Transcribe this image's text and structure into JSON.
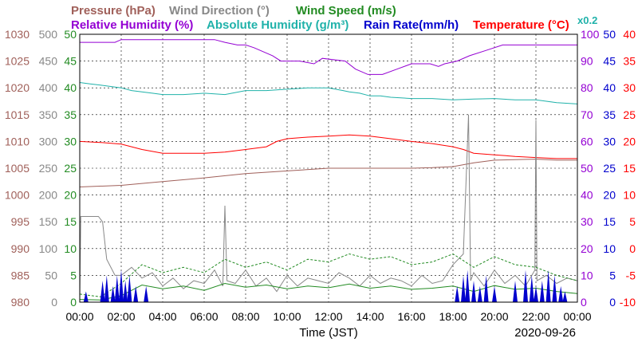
{
  "chart_data": {
    "type": "line",
    "xlabel": "Time (JST)",
    "date": "2020-09-26",
    "x_ticks": [
      "00:00",
      "02:00",
      "04:00",
      "06:00",
      "08:00",
      "10:00",
      "12:00",
      "14:00",
      "16:00",
      "18:00",
      "20:00",
      "22:00",
      "00:00"
    ],
    "xlim_hours": [
      0,
      24
    ],
    "grid": true,
    "legend": [
      {
        "text": "Pressure (hPa)",
        "color": "#a0605a"
      },
      {
        "text": "Wind Direction (°)",
        "color": "#888888"
      },
      {
        "text": "Wind Speed (m/s)",
        "color": "#228b22"
      },
      {
        "text": "Relative Humidity (%)",
        "color": "#9400d3"
      },
      {
        "text": "Absolute Humidity (g/m³)",
        "color": "#20b2aa"
      },
      {
        "text": "Rain Rate(mm/h)",
        "color": "#0000cd"
      },
      {
        "text": "Temperature (°C)",
        "color": "#ff0000"
      },
      {
        "text": "x0.2",
        "color": "#20b2aa"
      }
    ],
    "axes": {
      "pressure": {
        "color": "#a0605a",
        "ticks": [
          "980",
          "985",
          "990",
          "995",
          "1000",
          "1005",
          "1010",
          "1015",
          "1020",
          "1025",
          "1030"
        ]
      },
      "wind_direction": {
        "color": "#888888",
        "ticks": [
          "0",
          "50",
          "100",
          "150",
          "200",
          "250",
          "300",
          "350",
          "400",
          "450",
          "500"
        ]
      },
      "wind_speed": {
        "color": "#228b22",
        "ticks": [
          "0",
          "5",
          "10",
          "15",
          "20",
          "25",
          "30",
          "35",
          "40",
          "45",
          "50"
        ]
      },
      "humidity": {
        "color": "#9400d3",
        "ticks": [
          "0",
          "10",
          "20",
          "30",
          "40",
          "50",
          "60",
          "70",
          "80",
          "90",
          "100"
        ]
      },
      "rain_rate": {
        "color": "#0000cd",
        "ticks": [
          "0",
          "5",
          "10",
          "15",
          "20",
          "25",
          "30",
          "35",
          "40",
          "45",
          "50"
        ]
      },
      "temperature": {
        "color": "#ff0000",
        "ticks": [
          "-10",
          "-5",
          "0",
          "5",
          "10",
          "15",
          "20",
          "25",
          "30",
          "35",
          "40"
        ]
      }
    },
    "series": [
      {
        "name": "Relative Humidity (%)",
        "color": "#9400d3",
        "axis": "humidity",
        "x": [
          0,
          1.7,
          2.0,
          4.0,
          6.5,
          7.0,
          7.6,
          8.0,
          8.4,
          9.3,
          9.7,
          10.6,
          11.3,
          11.7,
          12.8,
          13.3,
          13.9,
          14.6,
          15.3,
          16.0,
          16.9,
          17.3,
          17.6,
          18.2,
          18.8,
          19.6,
          20.4,
          22.0,
          24.0
        ],
        "y": [
          97,
          97,
          98,
          98,
          98,
          97,
          96,
          96,
          95,
          92,
          90,
          90,
          89,
          91,
          90,
          87,
          85,
          85,
          87,
          89,
          89,
          88,
          89,
          90,
          92,
          94,
          96,
          96,
          96
        ]
      },
      {
        "name": "Absolute Humidity (g/m³)",
        "color": "#20b2aa",
        "axis": "humidity",
        "x": [
          0,
          0.5,
          1.0,
          1.5,
          2.0,
          2.5,
          3.0,
          3.5,
          4.0,
          5.0,
          6.0,
          7.0,
          8.0,
          9.0,
          10.0,
          11.0,
          12.0,
          12.7,
          13.0,
          13.5,
          14.0,
          14.5,
          15.0,
          16.0,
          17.0,
          18.0,
          19.0,
          20.0,
          21.0,
          22.0,
          23.0,
          24.0
        ],
        "y": [
          82,
          81.5,
          81,
          80.5,
          80,
          79,
          78.5,
          78,
          77.5,
          77.5,
          78,
          77.5,
          79,
          79,
          79.5,
          80,
          80,
          79,
          78.5,
          78,
          77,
          77,
          76.5,
          76,
          76,
          75.5,
          75.8,
          76,
          75.5,
          75.5,
          74.5,
          74
        ]
      },
      {
        "name": "Temperature (°C)",
        "color": "#ff0000",
        "axis": "temperature",
        "x": [
          0,
          1.0,
          2.0,
          3.0,
          4.0,
          5.0,
          6.0,
          7.0,
          8.0,
          9.0,
          9.5,
          10.0,
          11.0,
          12.0,
          13.0,
          14.0,
          15.0,
          16.0,
          17.0,
          18.0,
          18.5,
          19.0,
          20.0,
          21.0,
          22.0,
          23.0,
          24.0
        ],
        "y": [
          20,
          19.8,
          19.5,
          18.5,
          17.8,
          17.8,
          17.8,
          18.0,
          18.5,
          19.0,
          20.0,
          20.5,
          20.8,
          21.0,
          21.2,
          21.0,
          20.5,
          20.0,
          19.6,
          19.0,
          18.5,
          17.8,
          17.5,
          17.2,
          17.0,
          16.8,
          16.8
        ]
      },
      {
        "name": "Pressure (hPa)",
        "color": "#a0605a",
        "axis": "pressure",
        "x": [
          0,
          2.0,
          4.0,
          6.0,
          8.0,
          10.0,
          12.0,
          14.0,
          16.0,
          17.0,
          18.0,
          19.0,
          20.0,
          21.0,
          22.0,
          23.0,
          24.0
        ],
        "y": [
          1001.5,
          1001.8,
          1002.5,
          1003.2,
          1004.0,
          1004.5,
          1005.0,
          1005.0,
          1005.0,
          1005.1,
          1005.3,
          1006.0,
          1006.5,
          1006.6,
          1006.7,
          1006.5,
          1006.5
        ]
      },
      {
        "name": "Wind Direction (°)",
        "color": "#888888",
        "axis": "wind_direction",
        "x": [
          0,
          0.05,
          0.9,
          1.1,
          1.3,
          1.7,
          2.0,
          2.5,
          3.0,
          3.5,
          4.0,
          4.5,
          5.0,
          5.5,
          6.0,
          6.5,
          6.9,
          7.0,
          7.1,
          7.5,
          8.0,
          8.5,
          9.0,
          9.5,
          10.0,
          10.5,
          11.0,
          11.5,
          12.0,
          12.5,
          13.0,
          13.5,
          14.0,
          14.5,
          15.0,
          15.5,
          16.0,
          16.5,
          17.0,
          17.5,
          18.0,
          18.5,
          18.75,
          18.85,
          19.0,
          19.5,
          20.0,
          20.5,
          21.0,
          21.5,
          21.95,
          22.0,
          22.05,
          22.5,
          23.0,
          23.5,
          24.0
        ],
        "y": [
          0,
          160,
          160,
          150,
          80,
          50,
          50,
          65,
          45,
          55,
          30,
          45,
          25,
          40,
          35,
          60,
          30,
          180,
          40,
          35,
          60,
          30,
          45,
          20,
          50,
          30,
          45,
          40,
          35,
          55,
          45,
          30,
          50,
          35,
          45,
          40,
          30,
          50,
          35,
          40,
          70,
          90,
          350,
          40,
          55,
          30,
          60,
          35,
          50,
          30,
          60,
          340,
          40,
          50,
          35,
          45,
          40
        ]
      },
      {
        "name": "Wind Speed (m/s)",
        "color": "#228b22",
        "axis": "wind_speed",
        "x": [
          0,
          1.0,
          2.0,
          2.5,
          3.0,
          4.0,
          5.0,
          6.0,
          7.0,
          8.0,
          9.0,
          10.0,
          11.0,
          12.0,
          13.0,
          14.0,
          15.0,
          16.0,
          17.0,
          18.0,
          19.0,
          20.0,
          21.0,
          22.0,
          23.0,
          24.0
        ],
        "y": [
          0.5,
          0.4,
          1.2,
          2.2,
          3.2,
          2.5,
          3.0,
          2.2,
          3.5,
          2.8,
          3.2,
          2.5,
          3.0,
          2.7,
          3.4,
          2.6,
          3.0,
          2.4,
          2.6,
          3.0,
          2.0,
          3.1,
          2.4,
          2.6,
          2.0,
          1.6
        ]
      },
      {
        "name": "Wind Speed (m/s)",
        "color": "#228b22",
        "axis": "wind_speed",
        "style": "dashed",
        "x": [
          0,
          1.0,
          2.0,
          3.0,
          4.0,
          5.0,
          6.0,
          7.0,
          8.0,
          9.0,
          10.0,
          11.0,
          12.0,
          13.0,
          14.0,
          15.0,
          16.0,
          17.0,
          18.0,
          19.0,
          20.0,
          21.0,
          22.0,
          23.0,
          24.0
        ],
        "y": [
          1.5,
          1.0,
          3.5,
          7.0,
          5.5,
          6.5,
          5.5,
          8.0,
          6.5,
          7.5,
          6.0,
          8.0,
          7.5,
          9.0,
          8.0,
          8.5,
          7.0,
          7.5,
          9.0,
          6.5,
          8.5,
          7.0,
          6.5,
          5.0,
          4.0
        ]
      },
      {
        "name": "Rain Rate(mm/h)",
        "color": "#0000cd",
        "axis": "rain_rate",
        "x": [
          0.3,
          1.1,
          1.3,
          1.6,
          1.8,
          2.0,
          2.2,
          2.4,
          2.7,
          3.2,
          18.2,
          18.5,
          18.7,
          19.0,
          19.3,
          19.6,
          20.0,
          21.0,
          21.5,
          21.8,
          22.0,
          22.3,
          22.6,
          22.9,
          23.2,
          23.4
        ],
        "y": [
          2,
          4,
          5,
          3,
          5,
          6,
          4,
          5,
          3,
          3,
          3,
          5,
          6,
          4,
          3,
          5,
          3,
          4,
          6,
          5,
          3,
          4,
          6,
          5,
          3,
          2
        ]
      }
    ]
  }
}
